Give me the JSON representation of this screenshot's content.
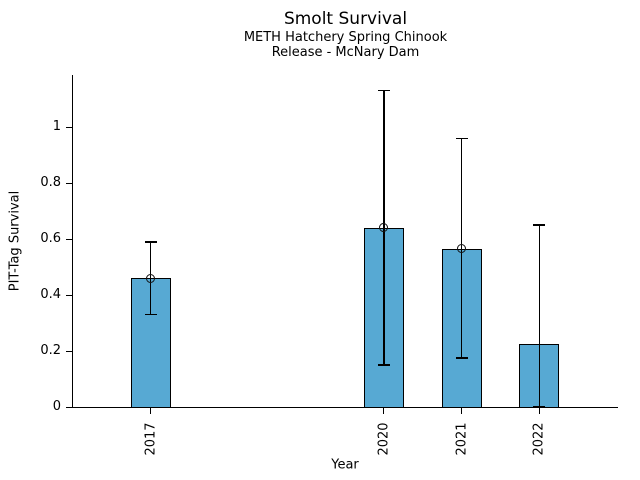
{
  "chart_data": {
    "type": "bar",
    "title": "Smolt Survival",
    "subtitle1": "METH Hatchery Spring Chinook",
    "subtitle2": "Release - McNary Dam",
    "xlabel": "Year",
    "ylabel": "PIT-Tag Survival",
    "x": [
      2017,
      2020,
      2021,
      2022
    ],
    "x_tick_labels": [
      "2017",
      "2020",
      "2021",
      "2022"
    ],
    "values": [
      0.46,
      0.64,
      0.565,
      0.225
    ],
    "error_low": [
      0.33,
      0.15,
      0.175,
      0.0
    ],
    "error_high": [
      0.59,
      1.13,
      0.96,
      0.65
    ],
    "point_markers": [
      true,
      true,
      true,
      false
    ],
    "bar_width_years": 0.515,
    "xlim": [
      2016,
      2023
    ],
    "ylim": [
      0,
      1.186
    ],
    "yticks": [
      0,
      0.2,
      0.4,
      0.6,
      0.8,
      1
    ],
    "ytick_labels": [
      "0",
      "0.2",
      "0.4",
      "0.6",
      "0.8",
      "1"
    ],
    "bar_color": "#57A9D3",
    "bar_edge_color": "#000000",
    "error_color": "#000000",
    "grid": false,
    "legend": null
  }
}
